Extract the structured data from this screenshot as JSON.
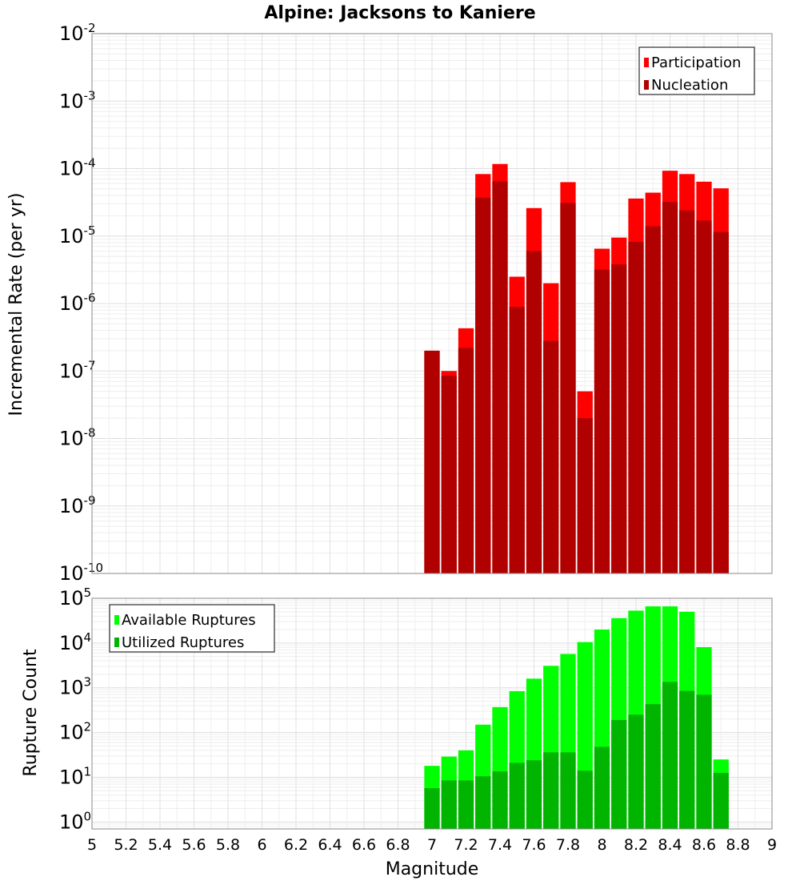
{
  "chart_data": [
    {
      "type": "bar",
      "title": "Alpine: Jacksons to Kaniere",
      "xlabel": "",
      "ylabel": "Incremental Rate (per yr)",
      "yscale": "log",
      "ylim": [
        1e-10,
        0.01
      ],
      "xlim": [
        5,
        9
      ],
      "y_tick_exponents": [
        "-10",
        "-9",
        "-8",
        "-7",
        "-6",
        "-5",
        "-4",
        "-3",
        "-2"
      ],
      "y_tick_base": "10",
      "legend_position": "top-right",
      "grid": true,
      "colors": {
        "Participation": "#ff0000",
        "Nucleation": "#b00000"
      },
      "x": [
        7.0,
        7.1,
        7.2,
        7.3,
        7.4,
        7.5,
        7.6,
        7.7,
        7.8,
        7.9,
        8.0,
        8.1,
        8.2,
        8.3,
        8.4,
        8.5,
        8.6,
        8.7
      ],
      "series": [
        {
          "name": "Participation",
          "values": [
            2e-07,
            1e-07,
            4.3e-07,
            8.3e-05,
            0.000117,
            2.5e-06,
            2.6e-05,
            2e-06,
            6.3e-05,
            5e-08,
            6.5e-06,
            9.5e-06,
            3.6e-05,
            4.4e-05,
            9.3e-05,
            8.3e-05,
            6.4e-05,
            5.1e-05
          ]
        },
        {
          "name": "Nucleation",
          "values": [
            2e-07,
            8.5e-08,
            2.2e-07,
            3.7e-05,
            6.5e-05,
            8.9e-07,
            6e-06,
            2.8e-07,
            3.1e-05,
            2e-08,
            3.2e-06,
            3.8e-06,
            8.2e-06,
            1.4e-05,
            3.2e-05,
            2.4e-05,
            1.7e-05,
            1.15e-05
          ]
        }
      ]
    },
    {
      "type": "bar",
      "title": "",
      "xlabel": "Magnitude",
      "ylabel": "Rupture Count",
      "yscale": "log",
      "ylim": [
        0.7,
        100000.0
      ],
      "xlim": [
        5,
        9
      ],
      "y_tick_exponents": [
        "0",
        "1",
        "2",
        "3",
        "4",
        "5"
      ],
      "y_tick_base": "10",
      "x_tick_labels": [
        "5",
        "5.2",
        "5.4",
        "5.6",
        "5.8",
        "6",
        "6.2",
        "6.4",
        "6.6",
        "6.8",
        "7",
        "7.2",
        "7.4",
        "7.6",
        "7.8",
        "8",
        "8.2",
        "8.4",
        "8.6",
        "8.8",
        "9"
      ],
      "legend_position": "top-left",
      "grid": true,
      "colors": {
        "Available Ruptures": "#00ff00",
        "Utilized Ruptures": "#00b400"
      },
      "x": [
        7.0,
        7.1,
        7.2,
        7.3,
        7.4,
        7.5,
        7.6,
        7.7,
        7.8,
        7.9,
        8.0,
        8.1,
        8.2,
        8.3,
        8.4,
        8.5,
        8.6,
        8.7
      ],
      "series": [
        {
          "name": "Available Ruptures",
          "values": [
            18,
            29,
            40,
            150,
            370,
            840,
            1600,
            3100,
            5700,
            10500,
            20000,
            36000,
            53000,
            66000,
            66000,
            50000,
            8100,
            25
          ]
        },
        {
          "name": "Utilized Ruptures",
          "values": [
            5.7,
            8.5,
            8.5,
            10.5,
            13.5,
            21,
            24,
            36,
            36,
            14,
            48,
            190,
            250,
            430,
            1350,
            850,
            700,
            12.5
          ]
        }
      ]
    }
  ]
}
